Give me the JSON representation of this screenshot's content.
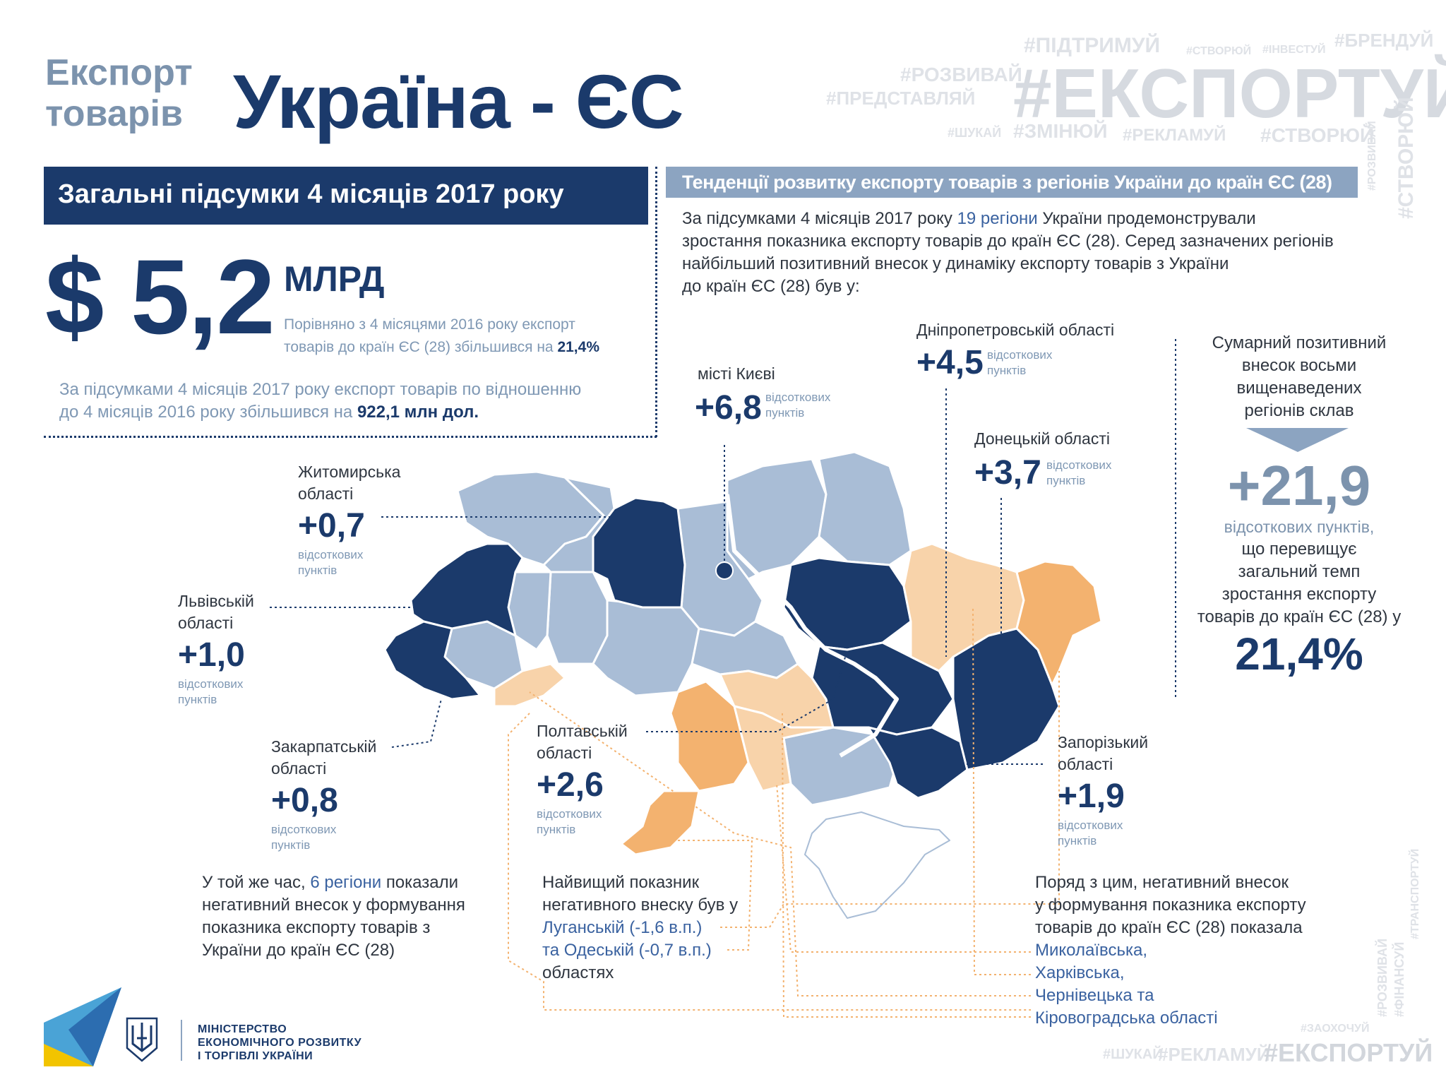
{
  "header": {
    "pre_title_line1": "Експорт",
    "pre_title_line2": "товарів",
    "title": "Україна - ЄС"
  },
  "hashtags": {
    "main": "#ЕКСПОРТУЙ",
    "items": [
      "#ПІДТРИМУЙ",
      "#СТВОРЮЙ",
      "#ІНВЕСТУЙ",
      "#БРЕНДУЙ",
      "#РОЗВИВАЙ",
      "#ПРЕДСТАВЛЯЙ",
      "#ШУКАЙ",
      "#ЗМІНЮЙ",
      "#РЕКЛАМУЙ",
      "#СТВОРЮЙ",
      "#РОЗВИВАЙ",
      "#СТВОРЮЙ"
    ],
    "bottom": [
      "#ШУКАЙ",
      "#РЕКЛАМУЙ",
      "#ЕКСПОРТУЙ",
      "#ЗАОХОЧУЙ"
    ],
    "side": [
      "#РОЗВИВАЙ",
      "#ФІНАНСУЙ",
      "#ТРАНСПОРТУЙ"
    ]
  },
  "summary": {
    "header": "Загальні підсумки 4 місяців 2017 року",
    "amount": "$ 5,2",
    "amount_unit": "МЛРД",
    "comparison_line1": "Порівняно з 4 місяцями 2016 року експорт",
    "comparison_line2": "товарів до країн ЄС (28) збільшився на",
    "comparison_value": "21,4%",
    "increase_line1": "За підсумками 4 місяців 2017 року експорт товарів по відношенню",
    "increase_line2": "до 4 місяців 2016 року збільшився на",
    "increase_value": "922,1 млн дол."
  },
  "trends": {
    "header": "Тенденції розвитку експорту товарів з регіонів України до країн ЄС (28)",
    "intro_line1_a": "За підсумками 4 місяців 2017 року",
    "intro_line1_b": "19 регіони",
    "intro_line1_c": "України продемонстрували",
    "intro_line2": "зростання показника експорту товарів до країн ЄС (28). Серед зазначених регіонів",
    "intro_line3": "найбільший позитивний внесок у динаміку експорту товарів з України",
    "intro_line4": "до країн ЄС (28) був у:"
  },
  "regions_positive": [
    {
      "name_line1": "Житомирська",
      "name_line2": "області",
      "value": "+0,7",
      "unit_line1": "відсоткових",
      "unit_line2": "пунктів"
    },
    {
      "name_line1": "Львівській",
      "name_line2": "області",
      "value": "+1,0",
      "unit_line1": "відсоткових",
      "unit_line2": "пунктів"
    },
    {
      "name_line1": "Закарпатській",
      "name_line2": "області",
      "value": "+0,8",
      "unit_line1": "відсоткових",
      "unit_line2": "пунктів"
    },
    {
      "name_line1": "Полтавській",
      "name_line2": "області",
      "value": "+2,6",
      "unit_line1": "відсоткових",
      "unit_line2": "пунктів"
    },
    {
      "name_line1": "місті Києві",
      "name_line2": "",
      "value": "+6,8",
      "unit_line1": "відсоткових",
      "unit_line2": "пунктів"
    },
    {
      "name_line1": "Дніпропетровській області",
      "name_line2": "",
      "value": "+4,5",
      "unit_line1": "відсоткових",
      "unit_line2": "пунктів"
    },
    {
      "name_line1": "Донецькій області",
      "name_line2": "",
      "value": "+3,7",
      "unit_line1": "відсоткових",
      "unit_line2": "пунктів"
    },
    {
      "name_line1": "Запорізький",
      "name_line2": "області",
      "value": "+1,9",
      "unit_line1": "відсоткових",
      "unit_line2": "пунктів"
    }
  ],
  "total": {
    "line1": "Сумарний позитивний",
    "line2": "внесок восьми",
    "line3": "вищенаведених",
    "line4": "регіонів склав",
    "value": "+21,9",
    "unit": "відсоткових пунктів,",
    "cmp_line1": "що перевищує",
    "cmp_line2": "загальний темп",
    "cmp_line3": "зростання експорту",
    "cmp_line4": "товарів до країн ЄС (28) у",
    "cmp_value": "21,4%"
  },
  "negative": {
    "left_line1_a": "У той же час,",
    "left_line1_b": "6 регіони",
    "left_line1_c": "показали",
    "left_line2": "негативний внесок у формування",
    "left_line3": "показника експорту товарів з",
    "left_line4": "України до країн ЄС (28)",
    "mid_line1": "Найвищий показник",
    "mid_line2": "негативного внеску був у",
    "mid_line3": "Луганській (-1,6 в.п.)",
    "mid_line4": "та Одеській (-0,7 в.п.)",
    "mid_line5": "областях",
    "right_line1": "Поряд з цим, негативний внесок",
    "right_line2": "у формування показника експорту",
    "right_line3": "товарів до країн ЄС (28) показала",
    "right_items": [
      "Миколаївська,",
      "Харківська,",
      "Чернівецька та",
      "Кіровоградська області"
    ]
  },
  "ministry": {
    "line1": "МІНІСТЕРСТВО",
    "line2": "ЕКОНОМІЧНОГО РОЗВИТКУ",
    "line3": "І ТОРГІВЛІ УКРАЇНИ"
  },
  "colors": {
    "navy": "#1b3a6b",
    "light_blue": "#a9bdd6",
    "orange": "#f3b26f",
    "light_orange": "#f8d3aa",
    "header_gray_blue": "#8ca4c1",
    "crimea": "#ffffff"
  }
}
